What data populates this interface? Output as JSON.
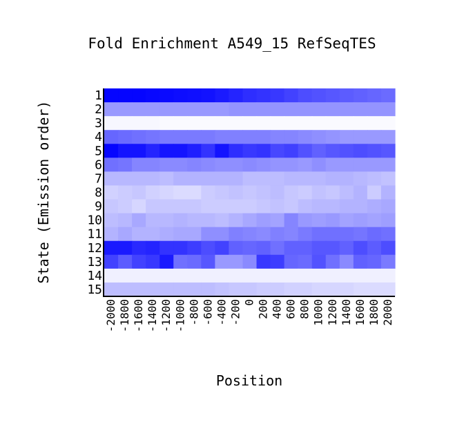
{
  "chart_data": {
    "type": "heatmap",
    "title": "Fold Enrichment A549_15 RefSeqTES",
    "xlabel": "Position",
    "ylabel": "State (Emission order)",
    "x": [
      -2000,
      -1800,
      -1600,
      -1400,
      -1200,
      -1000,
      -800,
      -600,
      -400,
      -200,
      0,
      200,
      400,
      600,
      800,
      1000,
      1200,
      1400,
      1600,
      1800,
      2000
    ],
    "x_tick_labels": [
      "-2000",
      "-1800",
      "-1600",
      "-1400",
      "-1200",
      "-1000",
      "-800",
      "-600",
      "-400",
      "-200",
      "0",
      "200",
      "400",
      "600",
      "800",
      "1000",
      "1200",
      "1400",
      "1600",
      "1800",
      "2000"
    ],
    "y_tick_labels": [
      "1",
      "2",
      "3",
      "4",
      "5",
      "6",
      "7",
      "8",
      "9",
      "10",
      "11",
      "12",
      "13",
      "14",
      "15"
    ],
    "color_low": "#ffffff",
    "color_high": "#0000ff",
    "intensity": [
      [
        0.98,
        0.98,
        0.98,
        0.97,
        0.96,
        0.95,
        0.94,
        0.93,
        0.9,
        0.86,
        0.82,
        0.8,
        0.78,
        0.74,
        0.7,
        0.68,
        0.66,
        0.64,
        0.62,
        0.6,
        0.58
      ],
      [
        0.4,
        0.4,
        0.4,
        0.4,
        0.4,
        0.4,
        0.4,
        0.4,
        0.4,
        0.42,
        0.42,
        0.42,
        0.42,
        0.42,
        0.42,
        0.42,
        0.42,
        0.42,
        0.42,
        0.42,
        0.42
      ],
      [
        0.03,
        0.03,
        0.03,
        0.03,
        0.02,
        0.02,
        0.02,
        0.02,
        0.02,
        0.02,
        0.02,
        0.02,
        0.02,
        0.02,
        0.02,
        0.02,
        0.02,
        0.02,
        0.02,
        0.02,
        0.02
      ],
      [
        0.6,
        0.58,
        0.56,
        0.54,
        0.52,
        0.52,
        0.52,
        0.52,
        0.5,
        0.5,
        0.5,
        0.5,
        0.48,
        0.48,
        0.46,
        0.44,
        0.42,
        0.4,
        0.4,
        0.4,
        0.4
      ],
      [
        0.98,
        0.92,
        0.92,
        0.86,
        0.92,
        0.92,
        0.88,
        0.8,
        0.92,
        0.82,
        0.78,
        0.8,
        0.72,
        0.75,
        0.68,
        0.62,
        0.66,
        0.68,
        0.7,
        0.68,
        0.66
      ],
      [
        0.56,
        0.54,
        0.48,
        0.48,
        0.46,
        0.46,
        0.48,
        0.46,
        0.44,
        0.44,
        0.46,
        0.44,
        0.42,
        0.42,
        0.4,
        0.44,
        0.4,
        0.4,
        0.4,
        0.4,
        0.4
      ],
      [
        0.28,
        0.28,
        0.28,
        0.28,
        0.26,
        0.3,
        0.3,
        0.3,
        0.3,
        0.3,
        0.26,
        0.26,
        0.26,
        0.28,
        0.28,
        0.28,
        0.3,
        0.3,
        0.28,
        0.26,
        0.24
      ],
      [
        0.18,
        0.2,
        0.22,
        0.18,
        0.16,
        0.14,
        0.14,
        0.2,
        0.22,
        0.24,
        0.22,
        0.24,
        0.26,
        0.22,
        0.2,
        0.24,
        0.22,
        0.26,
        0.3,
        0.2,
        0.3
      ],
      [
        0.22,
        0.2,
        0.16,
        0.22,
        0.22,
        0.22,
        0.22,
        0.2,
        0.2,
        0.2,
        0.2,
        0.22,
        0.24,
        0.22,
        0.26,
        0.28,
        0.28,
        0.3,
        0.3,
        0.32,
        0.34
      ],
      [
        0.26,
        0.28,
        0.34,
        0.28,
        0.28,
        0.3,
        0.28,
        0.28,
        0.26,
        0.3,
        0.34,
        0.38,
        0.36,
        0.48,
        0.4,
        0.38,
        0.4,
        0.36,
        0.38,
        0.36,
        0.38
      ],
      [
        0.3,
        0.34,
        0.3,
        0.3,
        0.32,
        0.34,
        0.34,
        0.44,
        0.44,
        0.5,
        0.48,
        0.46,
        0.5,
        0.48,
        0.52,
        0.56,
        0.56,
        0.56,
        0.54,
        0.58,
        0.56
      ],
      [
        0.9,
        0.9,
        0.84,
        0.86,
        0.8,
        0.8,
        0.76,
        0.7,
        0.74,
        0.62,
        0.6,
        0.62,
        0.56,
        0.62,
        0.62,
        0.66,
        0.66,
        0.62,
        0.7,
        0.64,
        0.7
      ],
      [
        0.74,
        0.64,
        0.74,
        0.78,
        0.9,
        0.56,
        0.58,
        0.66,
        0.4,
        0.4,
        0.46,
        0.78,
        0.76,
        0.6,
        0.58,
        0.68,
        0.56,
        0.46,
        0.62,
        0.6,
        0.52
      ],
      [
        0.06,
        0.06,
        0.06,
        0.06,
        0.06,
        0.06,
        0.06,
        0.06,
        0.06,
        0.06,
        0.06,
        0.06,
        0.06,
        0.06,
        0.06,
        0.06,
        0.06,
        0.06,
        0.06,
        0.06,
        0.06
      ],
      [
        0.26,
        0.26,
        0.26,
        0.26,
        0.26,
        0.26,
        0.26,
        0.26,
        0.24,
        0.22,
        0.22,
        0.2,
        0.2,
        0.18,
        0.18,
        0.16,
        0.16,
        0.16,
        0.14,
        0.14,
        0.14
      ]
    ]
  }
}
